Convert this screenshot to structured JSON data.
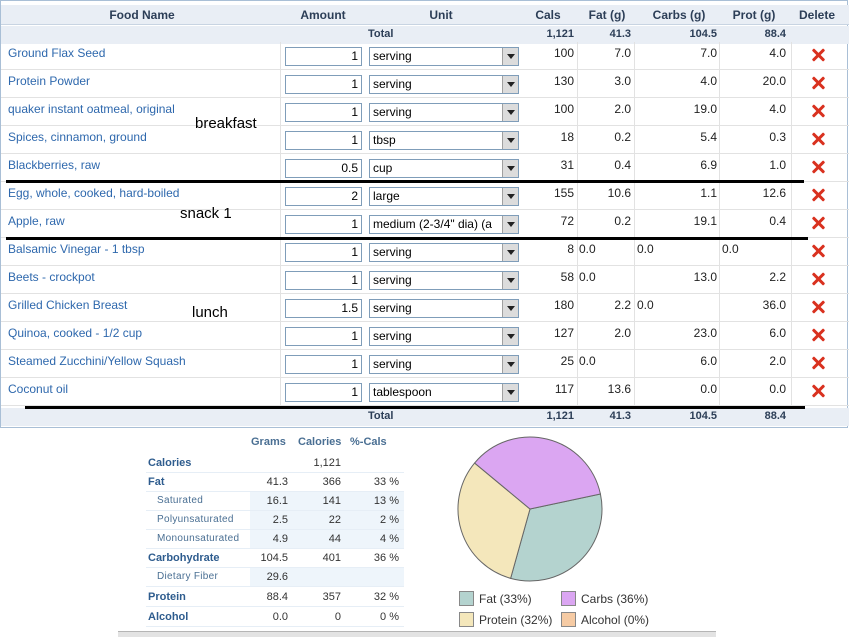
{
  "headers": {
    "food": "Food Name",
    "amount": "Amount",
    "unit": "Unit",
    "cals": "Cals",
    "fat": "Fat (g)",
    "carbs": "Carbs (g)",
    "prot": "Prot (g)",
    "delete": "Delete"
  },
  "totals": {
    "label": "Total",
    "cals": "1,121",
    "fat": "41.3",
    "carbs": "104.5",
    "prot": "88.4"
  },
  "meals": {
    "breakfast": "breakfast",
    "snack": "snack 1",
    "lunch": "lunch"
  },
  "rows": [
    {
      "name": "Ground Flax Seed",
      "amount": "1",
      "unit": "serving",
      "cals": "100",
      "fat": "7.0",
      "carbs": "7.0",
      "prot": "4.0"
    },
    {
      "name": "Protein Powder",
      "amount": "1",
      "unit": "serving",
      "cals": "130",
      "fat": "3.0",
      "carbs": "4.0",
      "prot": "20.0"
    },
    {
      "name": "quaker instant oatmeal, original",
      "amount": "1",
      "unit": "serving",
      "cals": "100",
      "fat": "2.0",
      "carbs": "19.0",
      "prot": "4.0"
    },
    {
      "name": "Spices, cinnamon, ground",
      "amount": "1",
      "unit": "tbsp",
      "cals": "18",
      "fat": "0.2",
      "carbs": "5.4",
      "prot": "0.3"
    },
    {
      "name": "Blackberries, raw",
      "amount": "0.5",
      "unit": "cup",
      "cals": "31",
      "fat": "0.4",
      "carbs": "6.9",
      "prot": "1.0"
    },
    {
      "name": "Egg, whole, cooked, hard-boiled",
      "amount": "2",
      "unit": "large",
      "cals": "155",
      "fat": "10.6",
      "carbs": "1.1",
      "prot": "12.6"
    },
    {
      "name": "Apple, raw",
      "amount": "1",
      "unit": "medium (2-3/4\" dia) (a",
      "cals": "72",
      "fat": "0.2",
      "carbs": "19.1",
      "prot": "0.4"
    },
    {
      "name": "Balsamic Vinegar - 1 tbsp",
      "amount": "1",
      "unit": "serving",
      "cals": "8",
      "fat": "0.0",
      "carbs": "0.0",
      "prot": "0.0",
      "left": [
        "fat",
        "carbs",
        "prot"
      ]
    },
    {
      "name": "Beets - crockpot",
      "amount": "1",
      "unit": "serving",
      "cals": "58",
      "fat": "0.0",
      "carbs": "13.0",
      "prot": "2.2",
      "left": [
        "fat"
      ]
    },
    {
      "name": "Grilled Chicken Breast",
      "amount": "1.5",
      "unit": "serving",
      "cals": "180",
      "fat": "2.2",
      "carbs": "0.0",
      "prot": "36.0",
      "left": [
        "carbs"
      ]
    },
    {
      "name": "Quinoa, cooked - 1/2 cup",
      "amount": "1",
      "unit": "serving",
      "cals": "127",
      "fat": "2.0",
      "carbs": "23.0",
      "prot": "6.0"
    },
    {
      "name": "Steamed Zucchini/Yellow Squash",
      "amount": "1",
      "unit": "serving",
      "cals": "25",
      "fat": "0.0",
      "carbs": "6.0",
      "prot": "2.0",
      "left": [
        "fat"
      ]
    },
    {
      "name": "Coconut oil",
      "amount": "1",
      "unit": "tablespoon",
      "cals": "117",
      "fat": "13.6",
      "carbs": "0.0",
      "prot": "0.0"
    }
  ],
  "summary": {
    "headers": {
      "grams": "Grams",
      "calories": "Calories",
      "pct": "%-Cals"
    },
    "rows": [
      {
        "label": "Calories",
        "grams": "",
        "calories": "1,121",
        "pct": "",
        "sub": false
      },
      {
        "label": "Fat",
        "grams": "41.3",
        "calories": "366",
        "pct": "33 %",
        "sub": false
      },
      {
        "label": "Saturated",
        "grams": "16.1",
        "calories": "141",
        "pct": "13 %",
        "sub": true
      },
      {
        "label": "Polyunsaturated",
        "grams": "2.5",
        "calories": "22",
        "pct": "2 %",
        "sub": true
      },
      {
        "label": "Monounsaturated",
        "grams": "4.9",
        "calories": "44",
        "pct": "4 %",
        "sub": true
      },
      {
        "label": "Carbohydrate",
        "grams": "104.5",
        "calories": "401",
        "pct": "36 %",
        "sub": false
      },
      {
        "label": "Dietary Fiber",
        "grams": "29.6",
        "calories": "",
        "pct": "",
        "sub": true
      },
      {
        "label": "Protein",
        "grams": "88.4",
        "calories": "357",
        "pct": "32 %",
        "sub": false
      },
      {
        "label": "Alcohol",
        "grams": "0.0",
        "calories": "0",
        "pct": "0 %",
        "sub": false
      }
    ]
  },
  "chart_data": {
    "type": "pie",
    "categories": [
      "Fat",
      "Carbs",
      "Protein",
      "Alcohol"
    ],
    "values": [
      33,
      36,
      32,
      0
    ],
    "legend": [
      "Fat (33%)",
      "Carbs (36%)",
      "Protein (32%)",
      "Alcohol (0%)"
    ],
    "colors": [
      "#b4d3cf",
      "#dba6f2",
      "#f4e7bb",
      "#f6cba4"
    ],
    "legend_placement": "bottom"
  }
}
